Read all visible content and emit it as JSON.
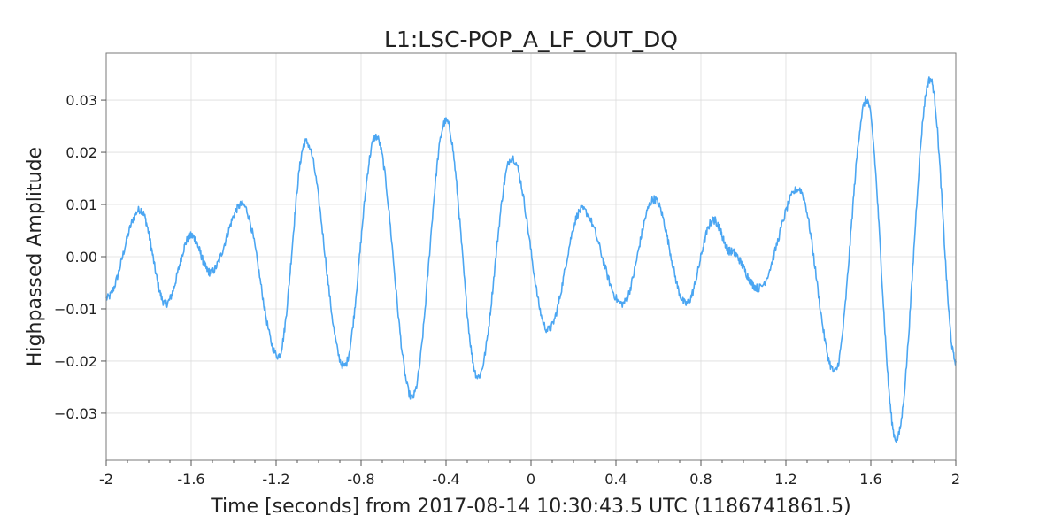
{
  "chart_data": {
    "type": "line",
    "title": "L1:LSC-POP_A_LF_OUT_DQ",
    "xlabel": "Time [seconds] from 2017-08-14 10:30:43.5 UTC (1186741861.5)",
    "ylabel": "Highpassed Amplitude",
    "xlim": [
      -2,
      2
    ],
    "ylim": [
      -0.039,
      0.039
    ],
    "grid": true,
    "x_ticks": [
      -2,
      -1.6,
      -1.2,
      -0.8,
      -0.4,
      0,
      0.4,
      0.8,
      1.2,
      1.6,
      2
    ],
    "x_tick_labels": [
      "-2",
      "-1.6",
      "-1.2",
      "-0.8",
      "-0.4",
      "0",
      "0.4",
      "0.8",
      "1.2",
      "1.6",
      "2"
    ],
    "y_ticks": [
      -0.03,
      -0.02,
      -0.01,
      0.0,
      0.01,
      0.02,
      0.03
    ],
    "y_tick_labels": [
      "−0.03",
      "−0.02",
      "−0.01",
      "0.00",
      "0.01",
      "0.02",
      "0.03"
    ],
    "series": [
      {
        "color": "#4ba6f2",
        "x": [
          -2.0,
          -1.84,
          -1.72,
          -1.6,
          -1.51,
          -1.36,
          -1.19,
          -1.06,
          -0.88,
          -0.73,
          -0.56,
          -0.4,
          -0.25,
          -0.09,
          0.08,
          0.24,
          0.43,
          0.58,
          0.73,
          0.86,
          0.94,
          1.07,
          1.26,
          1.43,
          1.58,
          1.72,
          1.88,
          2.0
        ],
        "values": [
          -0.008,
          0.009,
          -0.009,
          0.004,
          -0.003,
          0.01,
          -0.019,
          0.022,
          -0.021,
          0.023,
          -0.027,
          0.026,
          -0.023,
          0.019,
          -0.014,
          0.009,
          -0.009,
          0.011,
          -0.009,
          0.007,
          0.001,
          -0.006,
          0.013,
          -0.022,
          0.03,
          -0.035,
          0.034,
          -0.02
        ]
      }
    ]
  }
}
